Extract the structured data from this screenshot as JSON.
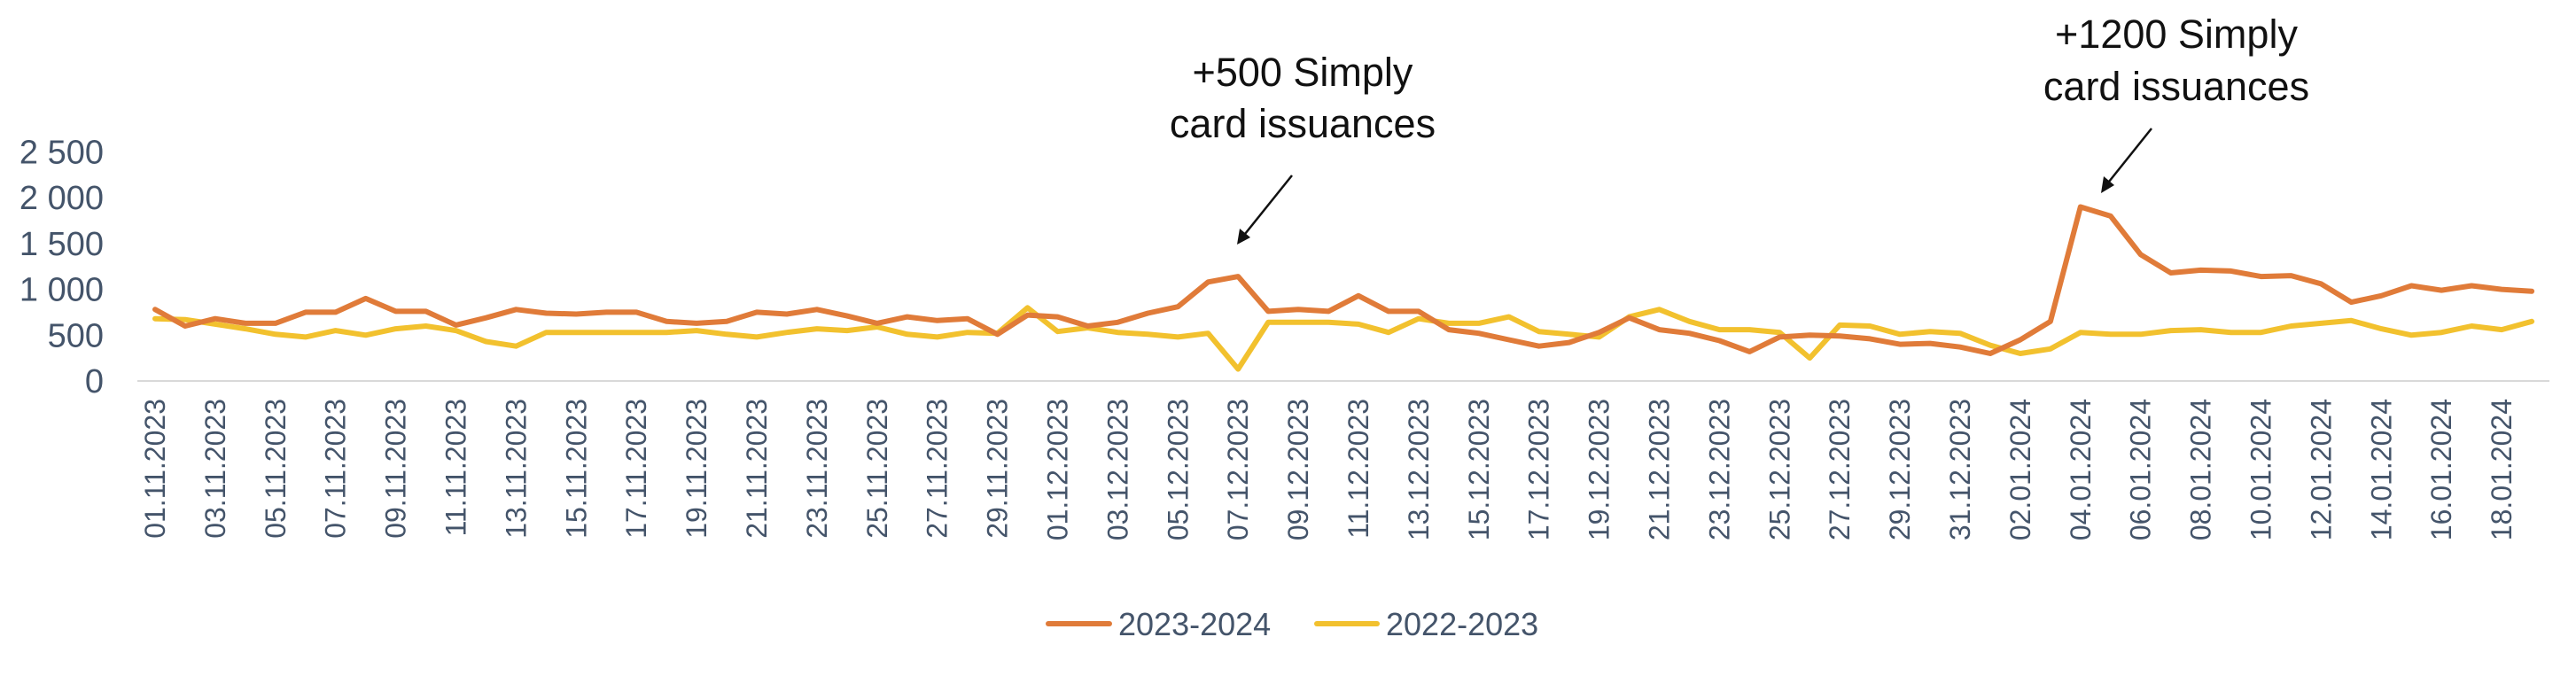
{
  "chart_data": {
    "type": "line",
    "x": [
      "01.11.2023",
      "02.11.2023",
      "03.11.2023",
      "04.11.2023",
      "05.11.2023",
      "06.11.2023",
      "07.11.2023",
      "08.11.2023",
      "09.11.2023",
      "10.11.2023",
      "11.11.2023",
      "12.11.2023",
      "13.11.2023",
      "14.11.2023",
      "15.11.2023",
      "16.11.2023",
      "17.11.2023",
      "18.11.2023",
      "19.11.2023",
      "20.11.2023",
      "21.11.2023",
      "22.11.2023",
      "23.11.2023",
      "24.11.2023",
      "25.11.2023",
      "26.11.2023",
      "27.11.2023",
      "28.11.2023",
      "29.11.2023",
      "30.11.2023",
      "01.12.2023",
      "02.12.2023",
      "03.12.2023",
      "04.12.2023",
      "05.12.2023",
      "06.12.2023",
      "07.12.2023",
      "08.12.2023",
      "09.12.2023",
      "10.12.2023",
      "11.12.2023",
      "12.12.2023",
      "13.12.2023",
      "14.12.2023",
      "15.12.2023",
      "16.12.2023",
      "17.12.2023",
      "18.12.2023",
      "19.12.2023",
      "20.12.2023",
      "21.12.2023",
      "22.12.2023",
      "23.12.2023",
      "24.12.2023",
      "25.12.2023",
      "26.12.2023",
      "27.12.2023",
      "28.12.2023",
      "29.12.2023",
      "30.12.2023",
      "31.12.2023",
      "01.01.2024",
      "02.01.2024",
      "03.01.2024",
      "04.01.2024",
      "05.01.2024",
      "06.01.2024",
      "07.01.2024",
      "08.01.2024",
      "09.01.2024",
      "10.01.2024",
      "11.01.2024",
      "12.01.2024",
      "13.01.2024",
      "14.01.2024",
      "15.01.2024",
      "16.01.2024",
      "17.01.2024",
      "18.01.2024",
      "19.01.2024"
    ],
    "x_tick_labels": [
      "01.11.2023",
      "03.11.2023",
      "05.11.2023",
      "07.11.2023",
      "09.11.2023",
      "11.11.2023",
      "13.11.2023",
      "15.11.2023",
      "17.11.2023",
      "19.11.2023",
      "21.11.2023",
      "23.11.2023",
      "25.11.2023",
      "27.11.2023",
      "29.11.2023",
      "01.12.2023",
      "03.12.2023",
      "05.12.2023",
      "07.12.2023",
      "09.12.2023",
      "11.12.2023",
      "13.12.2023",
      "15.12.2023",
      "17.12.2023",
      "19.12.2023",
      "21.12.2023",
      "23.12.2023",
      "25.12.2023",
      "27.12.2023",
      "29.12.2023",
      "31.12.2023",
      "02.01.2024",
      "04.01.2024",
      "06.01.2024",
      "08.01.2024",
      "10.01.2024",
      "12.01.2024",
      "14.01.2024",
      "16.01.2024",
      "18.01.2024"
    ],
    "y_tick_labels": [
      "0",
      "500",
      "1 000",
      "1 500",
      "2 000",
      "2 500"
    ],
    "y_ticks": [
      0,
      500,
      1000,
      1500,
      2000,
      2500
    ],
    "ylim": [
      0,
      2500
    ],
    "series": [
      {
        "name": "2023-2024",
        "color": "#e07b39",
        "values": [
          780,
          600,
          680,
          630,
          630,
          750,
          750,
          900,
          760,
          760,
          610,
          690,
          780,
          740,
          730,
          750,
          750,
          650,
          630,
          650,
          750,
          730,
          780,
          710,
          630,
          700,
          660,
          680,
          510,
          720,
          700,
          600,
          640,
          740,
          810,
          1080,
          1140,
          760,
          780,
          760,
          930,
          760,
          760,
          560,
          520,
          450,
          380,
          420,
          530,
          690,
          560,
          520,
          440,
          320,
          480,
          500,
          490,
          460,
          400,
          410,
          370,
          300,
          450,
          650,
          1900,
          1800,
          1380,
          1180,
          1210,
          1200,
          1140,
          1150,
          1060,
          860,
          930,
          1040,
          990,
          1040,
          1000,
          980
        ]
      },
      {
        "name": "2022-2023",
        "color": "#f2c12e",
        "values": [
          680,
          670,
          620,
          570,
          510,
          480,
          550,
          500,
          570,
          600,
          550,
          430,
          380,
          530,
          530,
          530,
          530,
          530,
          550,
          510,
          480,
          530,
          570,
          550,
          590,
          510,
          480,
          530,
          520,
          800,
          540,
          580,
          530,
          510,
          480,
          520,
          130,
          640,
          640,
          640,
          620,
          530,
          680,
          630,
          630,
          700,
          540,
          510,
          480,
          700,
          780,
          650,
          560,
          560,
          530,
          250,
          610,
          600,
          510,
          540,
          520,
          390,
          300,
          350,
          530,
          510,
          510,
          550,
          560,
          530,
          530,
          600,
          630,
          660,
          570,
          500,
          530,
          600,
          560,
          650
        ]
      }
    ],
    "annotations": [
      {
        "line1": "+500 Simply",
        "line2": "card issuances",
        "target_date": "07.12.2023"
      },
      {
        "line1": "+1200 Simply",
        "line2": "card issuances",
        "target_date": "04.01.2024"
      }
    ],
    "legend": {
      "position": "bottom-center",
      "entries": [
        "2023-2024",
        "2022-2023"
      ]
    },
    "grid": false
  }
}
